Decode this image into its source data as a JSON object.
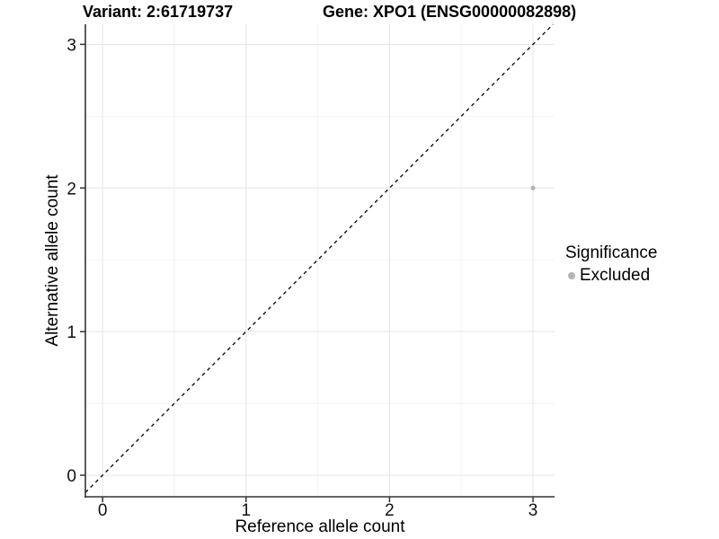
{
  "figure": {
    "title_left": "Variant: 2:61719737",
    "title_right": "Gene: XPO1 (ENSG00000082898)"
  },
  "chart_data": {
    "type": "scatter",
    "xlabel": "Reference allele count",
    "ylabel": "Alternative allele count",
    "xlim": [
      -0.12,
      3.15
    ],
    "ylim": [
      -0.15,
      3.14
    ],
    "x_ticks": [
      "0",
      "1",
      "2",
      "3"
    ],
    "y_ticks": [
      "0",
      "1",
      "2",
      "3"
    ],
    "grid": "major+minor",
    "legend": {
      "title": "Significance",
      "position": "right",
      "entries": [
        {
          "label": "Excluded",
          "marker": "circle",
          "color": "#b4b4b4"
        }
      ]
    },
    "series": [
      {
        "name": "Excluded",
        "color": "#b4b4b4",
        "points": [
          [
            3,
            2
          ]
        ]
      }
    ],
    "reference_line": {
      "kind": "identity",
      "slope": 1,
      "intercept": 0,
      "style": "dashed",
      "color": "#000000"
    }
  },
  "style": {
    "background": "#ffffff",
    "grid_major": "#e5e5e5",
    "grid_minor": "#f2f2f2",
    "axis_line": "#333333",
    "tick_text": "#111111",
    "point_color": "#b4b4b4"
  }
}
